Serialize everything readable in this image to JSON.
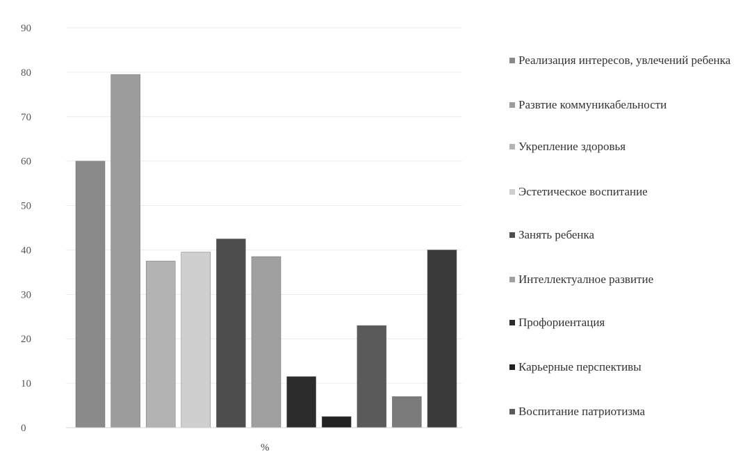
{
  "chart_data": {
    "type": "bar",
    "categories": [
      "%"
    ],
    "xlabel": "%",
    "ylim": [
      0,
      90
    ],
    "yticks": [
      0,
      10,
      20,
      30,
      40,
      50,
      60,
      70,
      80,
      90
    ],
    "grid": true,
    "legend_position": "right",
    "series": [
      {
        "name": "Реализация интересов, увлечений ребенка",
        "values": [
          60
        ],
        "color": "#8a8a8a"
      },
      {
        "name": "Развтие коммуникабельности",
        "values": [
          79.5
        ],
        "color": "#9c9c9c"
      },
      {
        "name": "Укрепление здоровья",
        "values": [
          37.5
        ],
        "color": "#b3b3b3"
      },
      {
        "name": "Эстетическое воспитание",
        "values": [
          39.5
        ],
        "color": "#cfcfcf"
      },
      {
        "name": "Занять ребенка",
        "values": [
          42.5
        ],
        "color": "#4d4d4d"
      },
      {
        "name": "Интеллектуалное развитие",
        "values": [
          38.5
        ],
        "color": "#a0a0a0"
      },
      {
        "name": "Профориентация",
        "values": [
          11.5
        ],
        "color": "#2c2c2c"
      },
      {
        "name": "Карьерные перспективы",
        "values": [
          2.5
        ],
        "color": "#222222"
      },
      {
        "name": "Воспитание патриотизма",
        "values": [
          23
        ],
        "color": "#5a5a5a"
      },
      {
        "name": "",
        "values": [
          7
        ],
        "color": "#7b7b7b"
      },
      {
        "name": "",
        "values": [
          40
        ],
        "color": "#3a3a3a"
      }
    ]
  }
}
